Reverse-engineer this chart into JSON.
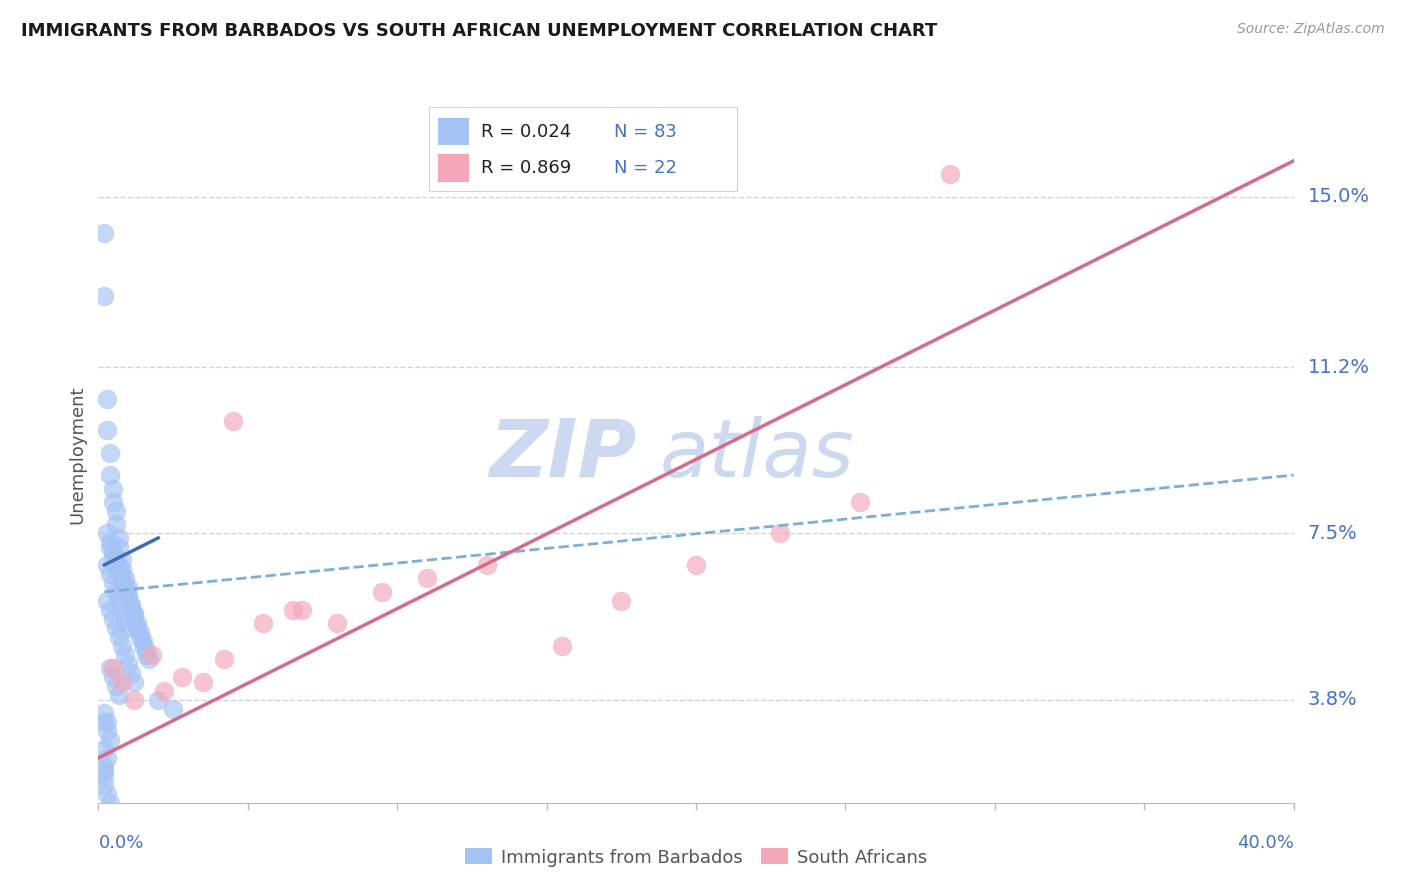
{
  "title": "IMMIGRANTS FROM BARBADOS VS SOUTH AFRICAN UNEMPLOYMENT CORRELATION CHART",
  "source": "Source: ZipAtlas.com",
  "ylabel": "Unemployment",
  "yticks": [
    0.038,
    0.075,
    0.112,
    0.15
  ],
  "ytick_labels": [
    "3.8%",
    "7.5%",
    "11.2%",
    "15.0%"
  ],
  "xlim": [
    0.0,
    0.4
  ],
  "ylim": [
    0.015,
    0.17
  ],
  "blue_color": "#a4c2f4",
  "pink_color": "#f4a7b9",
  "trend_blue_solid_color": "#3d6eb5",
  "trend_blue_dash_color": "#7bafd4",
  "trend_pink_color": "#d56b8a",
  "blue_scatter_x": [
    0.002,
    0.002,
    0.003,
    0.003,
    0.004,
    0.004,
    0.005,
    0.005,
    0.006,
    0.006,
    0.007,
    0.007,
    0.008,
    0.008,
    0.009,
    0.01,
    0.01,
    0.011,
    0.011,
    0.012,
    0.012,
    0.013,
    0.013,
    0.014,
    0.014,
    0.015,
    0.015,
    0.016,
    0.016,
    0.017,
    0.003,
    0.004,
    0.005,
    0.006,
    0.007,
    0.008,
    0.009,
    0.01,
    0.011,
    0.012,
    0.003,
    0.004,
    0.005,
    0.006,
    0.007,
    0.008,
    0.009,
    0.01,
    0.011,
    0.012,
    0.003,
    0.004,
    0.005,
    0.006,
    0.007,
    0.008,
    0.009,
    0.01,
    0.004,
    0.005,
    0.006,
    0.007,
    0.008,
    0.009,
    0.004,
    0.005,
    0.006,
    0.007,
    0.02,
    0.025,
    0.002,
    0.003,
    0.004,
    0.002,
    0.003,
    0.002,
    0.002,
    0.002,
    0.003,
    0.004,
    0.002,
    0.003,
    0.002
  ],
  "blue_scatter_y": [
    0.142,
    0.128,
    0.105,
    0.098,
    0.093,
    0.088,
    0.085,
    0.082,
    0.08,
    0.077,
    0.074,
    0.072,
    0.069,
    0.067,
    0.065,
    0.063,
    0.061,
    0.059,
    0.058,
    0.057,
    0.056,
    0.055,
    0.054,
    0.053,
    0.052,
    0.051,
    0.05,
    0.049,
    0.048,
    0.047,
    0.075,
    0.073,
    0.071,
    0.069,
    0.067,
    0.065,
    0.063,
    0.061,
    0.059,
    0.057,
    0.06,
    0.058,
    0.056,
    0.054,
    0.052,
    0.05,
    0.048,
    0.046,
    0.044,
    0.042,
    0.068,
    0.066,
    0.064,
    0.062,
    0.06,
    0.058,
    0.056,
    0.054,
    0.072,
    0.07,
    0.068,
    0.066,
    0.064,
    0.062,
    0.045,
    0.043,
    0.041,
    0.039,
    0.038,
    0.036,
    0.033,
    0.031,
    0.029,
    0.027,
    0.025,
    0.023,
    0.021,
    0.019,
    0.017,
    0.015,
    0.035,
    0.033,
    0.022
  ],
  "pink_scatter_x": [
    0.005,
    0.008,
    0.012,
    0.018,
    0.022,
    0.028,
    0.035,
    0.042,
    0.055,
    0.068,
    0.08,
    0.095,
    0.11,
    0.13,
    0.155,
    0.175,
    0.2,
    0.228,
    0.255,
    0.285,
    0.045,
    0.065
  ],
  "pink_scatter_y": [
    0.045,
    0.042,
    0.038,
    0.048,
    0.04,
    0.043,
    0.042,
    0.047,
    0.055,
    0.058,
    0.055,
    0.062,
    0.065,
    0.068,
    0.05,
    0.06,
    0.068,
    0.075,
    0.082,
    0.155,
    0.1,
    0.058
  ],
  "blue_solid_trend_x": [
    0.002,
    0.02
  ],
  "blue_solid_trend_y": [
    0.068,
    0.074
  ],
  "blue_dash_trend_x": [
    0.002,
    0.4
  ],
  "blue_dash_trend_y": [
    0.062,
    0.088
  ],
  "pink_trend_x": [
    0.0,
    0.4
  ],
  "pink_trend_y": [
    0.025,
    0.158
  ],
  "watermark": "ZIPatlas",
  "watermark_color": "#ccd9f0",
  "grid_color": "#c8d4e8",
  "axis_color": "#4472c4",
  "label_color": "#555555",
  "bottom_tick_color": "#bbbbbb",
  "legend_box_color": "#e8eef8"
}
